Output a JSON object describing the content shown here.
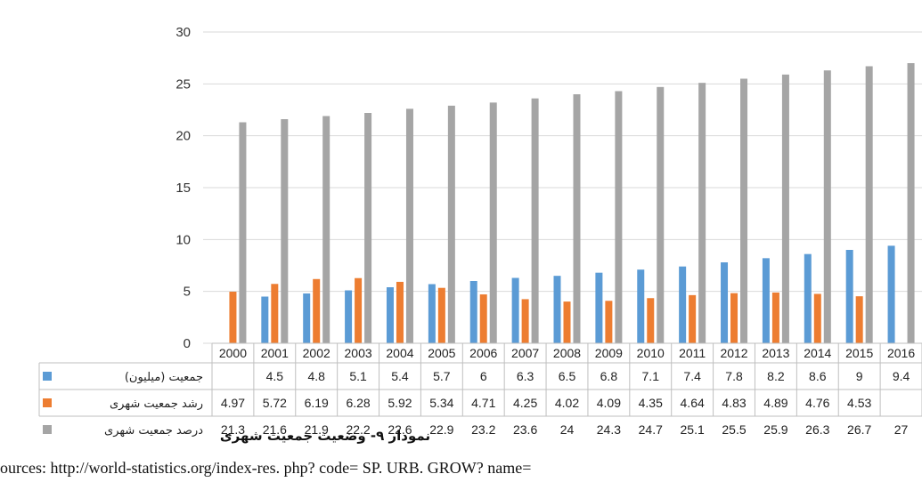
{
  "chart_data": {
    "type": "bar",
    "categories": [
      "2000",
      "2001",
      "2002",
      "2003",
      "2004",
      "2005",
      "2006",
      "2007",
      "2008",
      "2009",
      "2010",
      "2011",
      "2012",
      "2013",
      "2014",
      "2015",
      "2016"
    ],
    "series": [
      {
        "name": "جمعیت (میلیون)",
        "legend_label": "(جمعیت (میلیون",
        "color": "#5b9bd5",
        "values": [
          null,
          4.5,
          4.8,
          5.1,
          5.4,
          5.7,
          6,
          6.3,
          6.5,
          6.8,
          7.1,
          7.4,
          7.8,
          8.2,
          8.6,
          9,
          9.4
        ],
        "labels": [
          "",
          "4.5",
          "4.8",
          "5.1",
          "5.4",
          "5.7",
          "6",
          "6.3",
          "6.5",
          "6.8",
          "7.1",
          "7.4",
          "7.8",
          "8.2",
          "8.6",
          "9",
          "9.4"
        ]
      },
      {
        "name": "رشد جمعیت شهری",
        "legend_label": "رشد جمعیت شهری",
        "color": "#ed7d31",
        "values": [
          4.97,
          5.72,
          6.19,
          6.28,
          5.92,
          5.34,
          4.71,
          4.25,
          4.02,
          4.09,
          4.35,
          4.64,
          4.83,
          4.89,
          4.76,
          4.53,
          null
        ],
        "labels": [
          "4.97",
          "5.72",
          "6.19",
          "6.28",
          "5.92",
          "5.34",
          "4.71",
          "4.25",
          "4.02",
          "4.09",
          "4.35",
          "4.64",
          "4.83",
          "4.89",
          "4.76",
          "4.53",
          ""
        ]
      },
      {
        "name": "درصد جمعیت شهری",
        "legend_label": "درصد جمعیت شهری",
        "color": "#a5a5a5",
        "values": [
          21.3,
          21.6,
          21.9,
          22.2,
          22.6,
          22.9,
          23.2,
          23.6,
          24,
          24.3,
          24.7,
          25.1,
          25.5,
          25.9,
          26.3,
          26.7,
          27
        ],
        "labels": [
          "21.3",
          "21.6",
          "21.9",
          "22.2",
          "22.6",
          "22.9",
          "23.2",
          "23.6",
          "24",
          "24.3",
          "24.7",
          "25.1",
          "25.5",
          "25.9",
          "26.3",
          "26.7",
          "27"
        ]
      }
    ],
    "yticks": [
      0,
      5,
      10,
      15,
      20,
      25,
      30
    ],
    "ylim": [
      0,
      30
    ],
    "grid": true,
    "legend": "data-table",
    "caption": "نمودار ۹- وضعیت جمعیت شهری"
  },
  "source": {
    "text": "ources:  http://world-statistics.org/index-res. php?  code=  SP.  URB.  GROW?  name="
  }
}
